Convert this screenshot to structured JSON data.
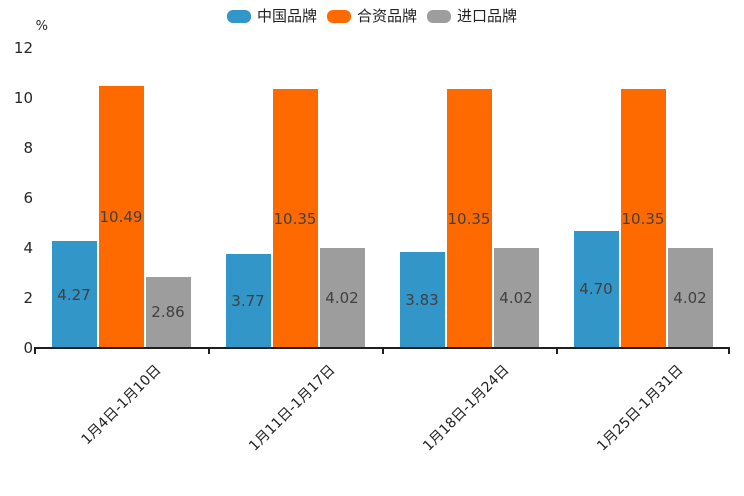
{
  "chart_data": {
    "type": "bar",
    "title": "",
    "unit_label": "%",
    "categories": [
      "1月4日-1月10日",
      "1月11日-1月17日",
      "1月18日-1月24日",
      "1月25日-1月31日"
    ],
    "series": [
      {
        "name": "中国品牌",
        "color": "#3296C8",
        "values": [
          4.27,
          3.77,
          3.83,
          4.7
        ]
      },
      {
        "name": "合资品牌",
        "color": "#FF6A00",
        "values": [
          10.49,
          10.35,
          10.35,
          10.35
        ]
      },
      {
        "name": "进口品牌",
        "color": "#9D9D9D",
        "values": [
          2.86,
          4.02,
          4.02,
          4.02
        ]
      }
    ],
    "ylim": [
      0,
      12
    ],
    "ytick_step": 2,
    "yticks": [
      0,
      2,
      4,
      6,
      8,
      10,
      12
    ],
    "grid": false,
    "legend_position": "top",
    "data_labels": true,
    "data_label_decimals": 2,
    "axis_color": "#1f1f1f",
    "label_color": "#404040"
  }
}
